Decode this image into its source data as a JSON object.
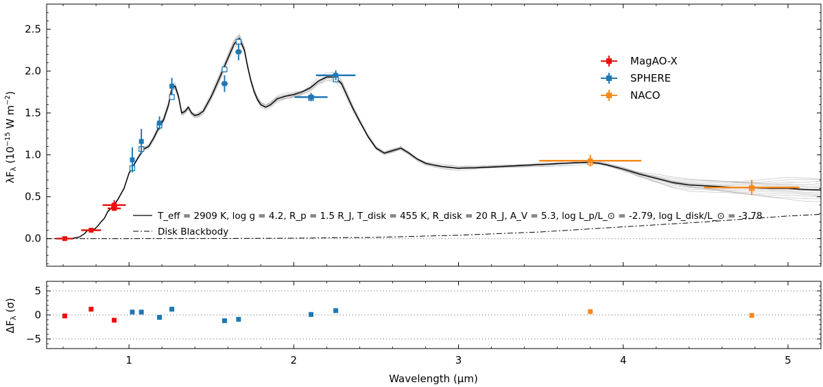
{
  "chart_data": [
    {
      "type": "line",
      "panel": "spectrum",
      "xlabel": "Wavelength (µm)",
      "ylabel": "λF_λ (10^-15 W m^-2)",
      "xlim": [
        0.5,
        5.2
      ],
      "ylim": [
        -0.33,
        2.8
      ],
      "xticks": [
        1,
        2,
        3,
        4,
        5
      ],
      "yticks": [
        0.0,
        0.5,
        1.0,
        1.5,
        2.0,
        2.5
      ],
      "xtick_labels": [
        "1",
        "2",
        "3",
        "4",
        "5"
      ],
      "ytick_labels": [
        "0.0",
        "0.5",
        "1.0",
        "1.5",
        "2.0",
        "2.5"
      ],
      "grid": false,
      "zero_line": "dotted",
      "legend_position": "upper-right",
      "model_annotation": "T_eff = 2909 K, log g = 4.2, R_p = 1.5 R_J, T_disk = 455 K, R_disk = 20 R_J, A_V = 5.3, log L_p/L_⊙ = -2.79, log L_disk/L_⊙ = -3.78",
      "model_spectrum": {
        "name": "T_eff = 2909 K, log g = 4.2, R_p = 1.5 R_J, T_disk = 455 K, R_disk = 20 R_J, A_V = 5.3, log L_p/L_⊙ = -2.79, log L_disk/L_⊙ = -3.78",
        "color": "#000000",
        "style": "solid",
        "x": [
          0.55,
          0.65,
          0.7,
          0.73,
          0.75,
          0.77,
          0.79,
          0.81,
          0.83,
          0.85,
          0.87,
          0.9,
          0.93,
          0.97,
          1.0,
          1.03,
          1.06,
          1.09,
          1.12,
          1.15,
          1.18,
          1.21,
          1.24,
          1.26,
          1.28,
          1.3,
          1.32,
          1.34,
          1.36,
          1.38,
          1.4,
          1.42,
          1.45,
          1.5,
          1.55,
          1.6,
          1.64,
          1.67,
          1.7,
          1.72,
          1.74,
          1.76,
          1.78,
          1.8,
          1.83,
          1.86,
          1.9,
          1.95,
          2.0,
          2.05,
          2.1,
          2.15,
          2.2,
          2.25,
          2.29,
          2.32,
          2.36,
          2.4,
          2.45,
          2.5,
          2.55,
          2.6,
          2.65,
          2.7,
          2.75,
          2.8,
          2.9,
          3.0,
          3.1,
          3.2,
          3.3,
          3.4,
          3.5,
          3.6,
          3.7,
          3.8,
          3.85,
          3.9,
          4.0,
          4.1,
          4.2,
          4.3,
          4.4,
          4.5,
          4.6,
          4.7,
          4.8,
          4.9,
          5.0,
          5.1,
          5.2
        ],
        "y": [
          0.0,
          0.0,
          0.02,
          0.06,
          0.1,
          0.12,
          0.11,
          0.15,
          0.2,
          0.24,
          0.32,
          0.38,
          0.46,
          0.6,
          0.78,
          0.88,
          0.98,
          1.07,
          1.1,
          1.2,
          1.32,
          1.42,
          1.6,
          1.8,
          1.82,
          1.7,
          1.5,
          1.52,
          1.57,
          1.5,
          1.47,
          1.48,
          1.52,
          1.7,
          1.92,
          2.15,
          2.33,
          2.39,
          2.25,
          2.05,
          1.88,
          1.75,
          1.66,
          1.6,
          1.57,
          1.6,
          1.67,
          1.7,
          1.72,
          1.75,
          1.8,
          1.88,
          1.93,
          1.93,
          1.85,
          1.72,
          1.55,
          1.4,
          1.22,
          1.08,
          1.02,
          1.05,
          1.08,
          1.02,
          0.95,
          0.9,
          0.86,
          0.84,
          0.845,
          0.855,
          0.865,
          0.875,
          0.885,
          0.895,
          0.905,
          0.91,
          0.9,
          0.88,
          0.83,
          0.77,
          0.72,
          0.67,
          0.64,
          0.63,
          0.62,
          0.61,
          0.605,
          0.6,
          0.6,
          0.585,
          0.58
        ]
      },
      "disk_blackbody": {
        "name": "Disk Blackbody",
        "color": "#000000",
        "style": "dash-dot",
        "x": [
          0.5,
          0.8,
          1.0,
          1.5,
          2.0,
          2.5,
          3.0,
          3.5,
          4.0,
          4.5,
          5.0,
          5.2
        ],
        "y": [
          0.0,
          0.0,
          0.0,
          0.001,
          0.005,
          0.015,
          0.04,
          0.08,
          0.14,
          0.2,
          0.27,
          0.29
        ]
      },
      "series": [
        {
          "name": "MagAO-X",
          "color": "#e8110f",
          "points": [
            {
              "x": 0.61,
              "y": 0.0,
              "xerr": 0.05,
              "yerr": 0.02
            },
            {
              "x": 0.77,
              "y": 0.1,
              "xerr": 0.06,
              "yerr": 0.03
            },
            {
              "x": 0.91,
              "y": 0.4,
              "xerr": 0.07,
              "yerr": 0.06
            },
            {
              "x": 0.91,
              "y": 0.36,
              "xerr": 0.04,
              "yerr": 0.0
            }
          ]
        },
        {
          "name": "SPHERE",
          "color": "#1f77b4",
          "points": [
            {
              "x": 1.02,
              "y": 0.94,
              "xerr": 0.01,
              "yerr": 0.15
            },
            {
              "x": 1.075,
              "y": 1.16,
              "xerr": 0.01,
              "yerr": 0.15
            },
            {
              "x": 1.185,
              "y": 1.38,
              "xerr": 0.01,
              "yerr": 0.08
            },
            {
              "x": 1.26,
              "y": 1.82,
              "xerr": 0.01,
              "yerr": 0.1
            },
            {
              "x": 1.58,
              "y": 1.85,
              "xerr": 0.02,
              "yerr": 0.1
            },
            {
              "x": 1.665,
              "y": 2.23,
              "xerr": 0.02,
              "yerr": 0.1
            },
            {
              "x": 2.105,
              "y": 1.69,
              "xerr": 0.1,
              "yerr": 0.05
            },
            {
              "x": 2.255,
              "y": 1.95,
              "xerr": 0.12,
              "yerr": 0.06
            }
          ]
        },
        {
          "name": "NACO",
          "color": "#f5891f",
          "points": [
            {
              "x": 3.8,
              "y": 0.93,
              "xerr": 0.31,
              "yerr": 0.07
            },
            {
              "x": 4.78,
              "y": 0.61,
              "xerr": 0.29,
              "yerr": 0.09
            }
          ]
        }
      ],
      "model_photometry_open_squares": [
        {
          "x": 0.91,
          "y": 0.38,
          "color": "#e8110f"
        },
        {
          "x": 1.02,
          "y": 0.84,
          "color": "#1f77b4"
        },
        {
          "x": 1.075,
          "y": 1.07,
          "color": "#1f77b4"
        },
        {
          "x": 1.185,
          "y": 1.35,
          "color": "#1f77b4"
        },
        {
          "x": 1.26,
          "y": 1.69,
          "color": "#1f77b4"
        },
        {
          "x": 1.58,
          "y": 2.02,
          "color": "#1f77b4"
        },
        {
          "x": 1.665,
          "y": 2.35,
          "color": "#1f77b4"
        },
        {
          "x": 2.105,
          "y": 1.68,
          "color": "#1f77b4"
        },
        {
          "x": 2.255,
          "y": 1.9,
          "color": "#1f77b4"
        },
        {
          "x": 3.8,
          "y": 0.91,
          "color": "#f5891f"
        },
        {
          "x": 4.78,
          "y": 0.6,
          "color": "#f5891f"
        }
      ]
    },
    {
      "type": "scatter",
      "panel": "residuals",
      "xlabel": "Wavelength (µm)",
      "ylabel": "ΔF_λ (σ)",
      "xlim": [
        0.5,
        5.2
      ],
      "ylim": [
        -7.0,
        7.0
      ],
      "yticks": [
        -5,
        0,
        5
      ],
      "ytick_labels": [
        "−5",
        "0",
        "5"
      ],
      "reference_lines": [
        -5,
        0,
        5
      ],
      "series": [
        {
          "name": "MagAO-X",
          "color": "#e8110f",
          "x": [
            0.61,
            0.77,
            0.91
          ],
          "y": [
            -0.2,
            1.2,
            -1.1
          ]
        },
        {
          "name": "SPHERE",
          "color": "#1f77b4",
          "x": [
            1.02,
            1.075,
            1.185,
            1.26,
            1.58,
            1.665,
            2.105,
            2.255
          ],
          "y": [
            0.6,
            0.6,
            -0.5,
            1.2,
            -1.2,
            -0.9,
            0.1,
            0.9
          ]
        },
        {
          "name": "NACO",
          "color": "#f5891f",
          "x": [
            3.8,
            4.78
          ],
          "y": [
            0.7,
            -0.1
          ]
        }
      ]
    }
  ]
}
